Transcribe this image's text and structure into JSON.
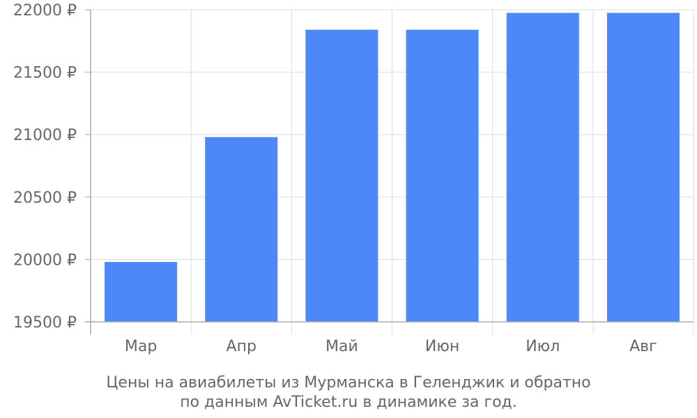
{
  "chart_data": {
    "type": "bar",
    "categories": [
      "Мар",
      "Апр",
      "Май",
      "Июн",
      "Июл",
      "Авг"
    ],
    "values": [
      19980,
      20980,
      21840,
      21840,
      21975,
      21975
    ],
    "ylim": [
      19500,
      22000
    ],
    "yticks": [
      "19500 ₽",
      "20000 ₽",
      "20500 ₽",
      "21000 ₽",
      "21500 ₽",
      "22000 ₽"
    ],
    "ytick_values": [
      19500,
      20000,
      20500,
      21000,
      21500,
      22000
    ],
    "caption_lines": [
      "Цены на авиабилеты из Мурманска в Геленджик и обратно",
      "по данным AvTicket.ru в динамике за год."
    ],
    "grid": true,
    "colors": {
      "bar": "#4d88f9",
      "grid": "#dddddd",
      "axis": "#aaaaaa",
      "text": "#666666"
    }
  }
}
